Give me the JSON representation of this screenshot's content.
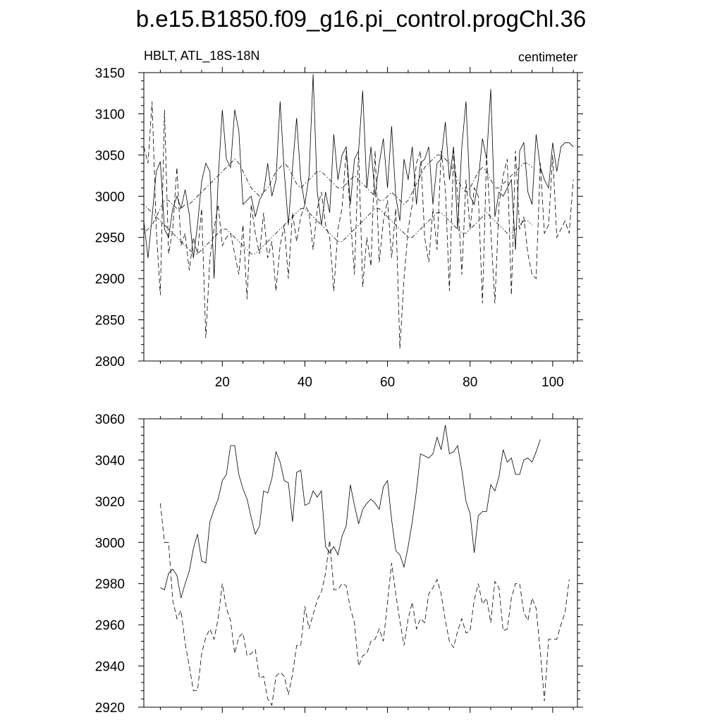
{
  "page": {
    "title": "b.e15.B1850.f09_g16.pi_control.progChl.36"
  },
  "chart_data": [
    {
      "type": "line",
      "left_title": "HBLT, ATL_18S-18N",
      "right_title": "centimeter",
      "xlim": [
        1,
        106
      ],
      "ylim": [
        2800,
        3150
      ],
      "x_ticks": [
        20,
        40,
        60,
        80,
        100
      ],
      "y_ticks": [
        2800,
        2850,
        2900,
        2950,
        3000,
        3050,
        3100,
        3150
      ],
      "grid": false,
      "series": [
        {
          "style": "solid",
          "x_start": 1,
          "values": [
            2970,
            2925,
            2975,
            3030,
            3042,
            2960,
            2950,
            2985,
            3000,
            2985,
            3008,
            2978,
            2925,
            2965,
            3018,
            3040,
            3030,
            2900,
            3020,
            3105,
            3045,
            3035,
            3105,
            3080,
            2990,
            2995,
            3000,
            2975,
            2995,
            3005,
            3040,
            3000,
            3020,
            3115,
            3030,
            2965,
            3035,
            3095,
            3020,
            2990,
            3025,
            3148,
            3005,
            2965,
            3005,
            2980,
            3075,
            3020,
            3050,
            3060,
            2990,
            3045,
            3055,
            3128,
            3010,
            3060,
            3000,
            3040,
            3070,
            3010,
            3085,
            3000,
            2970,
            3045,
            3020,
            3060,
            2990,
            3040,
            3045,
            3060,
            2990,
            3040,
            3045,
            3090,
            3020,
            3060,
            2960,
            3060,
            3115,
            3000,
            2990,
            3020,
            3070,
            3045,
            3130,
            2975,
            3005,
            3000,
            3010,
            3020,
            2935,
            3055,
            3065,
            3005,
            2990,
            3075,
            3035,
            3020,
            3010,
            3065,
            3030,
            3060,
            3065,
            3065,
            3060
          ]
        },
        {
          "style": "dashed",
          "x_start": 1,
          "values": [
            3060,
            3040,
            3115,
            2960,
            2880,
            3105,
            2930,
            2960,
            3035,
            2940,
            2955,
            2910,
            2950,
            2930,
            2985,
            2828,
            2925,
            2960,
            2990,
            2940,
            2950,
            2955,
            2930,
            2905,
            2965,
            2875,
            2990,
            2955,
            2930,
            2980,
            2925,
            2945,
            2885,
            2940,
            2965,
            2900,
            2980,
            2945,
            2975,
            2990,
            2980,
            2935,
            2985,
            3005,
            2965,
            2950,
            2885,
            2960,
            2985,
            3055,
            2975,
            2905,
            3055,
            2890,
            2950,
            2915,
            3055,
            2920,
            2970,
            2995,
            2925,
            2985,
            2815,
            2900,
            2960,
            2990,
            3040,
            3055,
            2950,
            2920,
            2985,
            2935,
            3055,
            3010,
            2885,
            3055,
            3000,
            2905,
            3020,
            2960,
            3010,
            3000,
            2870,
            3050,
            2960,
            2870,
            2990,
            3025,
            3045,
            2880,
            3055,
            2960,
            2975,
            2930,
            2905,
            2900,
            3040,
            2955,
            2965,
            3050,
            2950,
            2960,
            2970,
            2955,
            3020
          ]
        },
        {
          "style": "dash-dot",
          "x_start": 1,
          "values": [
            2955,
            2960,
            2965,
            2975,
            2985,
            2995,
            2995,
            2990,
            2985,
            2985,
            2990,
            2990,
            2995,
            3000,
            3005,
            3010,
            3015,
            3020,
            3025,
            3030,
            3035,
            3040,
            3045,
            3040,
            3030,
            3020,
            3010,
            3005,
            3000,
            3005,
            3010,
            3020,
            3030,
            3035,
            3040,
            3035,
            3025,
            3015,
            3010,
            3015,
            3020,
            3025,
            3030,
            3030,
            3025,
            3020,
            3015,
            3010,
            3010,
            3015,
            3020,
            3025,
            3020,
            3015,
            3010,
            3005,
            3000,
            2995,
            2995,
            3000,
            3005,
            3000,
            2995,
            2990,
            2995,
            3005,
            3015,
            3025,
            3035,
            3040,
            3045,
            3050,
            3050,
            3045,
            3040,
            3030,
            3020,
            3010,
            3005,
            3010,
            3020,
            3030,
            3035,
            3030,
            3020,
            3010,
            3010,
            3015,
            3020,
            3025,
            3030,
            3035,
            3040,
            3040,
            3035
          ]
        },
        {
          "style": "dash-dot-dot",
          "x_start": 1,
          "values": [
            2990,
            2985,
            2980,
            2975,
            2970,
            2965,
            2960,
            2955,
            2950,
            2945,
            2940,
            2935,
            2930,
            2930,
            2935,
            2940,
            2945,
            2950,
            2955,
            2960,
            2960,
            2955,
            2950,
            2945,
            2940,
            2935,
            2930,
            2930,
            2935,
            2940,
            2945,
            2950,
            2955,
            2960,
            2965,
            2970,
            2975,
            2980,
            2985,
            2985,
            2980,
            2975,
            2970,
            2965,
            2960,
            2955,
            2950,
            2945,
            2945,
            2950,
            2955,
            2960,
            2965,
            2970,
            2975,
            2980,
            2985,
            2985,
            2980,
            2975,
            2970,
            2965,
            2960,
            2955,
            2950,
            2950,
            2955,
            2960,
            2965,
            2970,
            2975,
            2980,
            2980,
            2975,
            2970,
            2965,
            2960,
            2955,
            2955,
            2960,
            2965,
            2970,
            2975,
            2980,
            2975,
            2970,
            2965,
            2960,
            2955,
            2955,
            2960,
            2965,
            2970,
            2970,
            2965
          ]
        }
      ]
    },
    {
      "type": "line",
      "xlim": [
        1,
        106
      ],
      "ylim": [
        2920,
        3060
      ],
      "x_ticks": [
        20,
        40,
        60,
        80,
        100
      ],
      "y_ticks": [
        2920,
        2940,
        2960,
        2980,
        3000,
        3020,
        3040,
        3060
      ],
      "grid": false,
      "series": [
        {
          "style": "solid",
          "x_start": 5,
          "values": [
            2978,
            2977,
            2985,
            2987,
            2984,
            2973,
            2980,
            2986,
            2997,
            3004,
            2991,
            2990,
            3010,
            3016,
            3021,
            3030,
            3033,
            3047,
            3047,
            3033,
            3026,
            3021,
            3012,
            3004,
            3008,
            3025,
            3024,
            3031,
            3044,
            3039,
            3030,
            3029,
            3010,
            3034,
            3035,
            3018,
            3019,
            3025,
            3022,
            3025,
            2998,
            2995,
            2998,
            2994,
            3003,
            3008,
            3028,
            3018,
            3009,
            3016,
            3019,
            3021,
            3019,
            3016,
            3027,
            3030,
            3011,
            2996,
            2994,
            2988,
            2998,
            3010,
            3025,
            3043,
            3042,
            3041,
            3043,
            3051,
            3045,
            3057,
            3043,
            3044,
            3047,
            3035,
            3020,
            3014,
            2995,
            3013,
            3015,
            3015,
            3028,
            3025,
            3032,
            3045,
            3039,
            3041,
            3033,
            3033,
            3040,
            3041,
            3039,
            3044,
            3050
          ]
        },
        {
          "style": "dashed",
          "x_start": 5,
          "values": [
            3019,
            3000,
            3000,
            2972,
            2963,
            2967,
            2951,
            2940,
            2928,
            2928,
            2946,
            2954,
            2958,
            2953,
            2963,
            2980,
            2968,
            2962,
            2946,
            2954,
            2956,
            2945,
            2946,
            2948,
            2934,
            2935,
            2924,
            2921,
            2935,
            2937,
            2935,
            2926,
            2936,
            2950,
            2950,
            2969,
            2958,
            2965,
            2972,
            2976,
            2985,
            3001,
            2977,
            2977,
            2980,
            2979,
            2968,
            2961,
            2940,
            2945,
            2946,
            2952,
            2953,
            2958,
            2952,
            2971,
            2990,
            2975,
            2962,
            2950,
            2963,
            2971,
            2958,
            2963,
            2961,
            2975,
            2978,
            2982,
            2975,
            2962,
            2952,
            2949,
            2957,
            2963,
            2956,
            2957,
            2972,
            2980,
            2970,
            2973,
            2961,
            2981,
            2978,
            2957,
            2958,
            2973,
            2980,
            2980,
            2966,
            2962,
            2973,
            2968,
            2947,
            2923,
            2953,
            2953,
            2953,
            2960,
            2966,
            2982
          ]
        }
      ]
    }
  ]
}
